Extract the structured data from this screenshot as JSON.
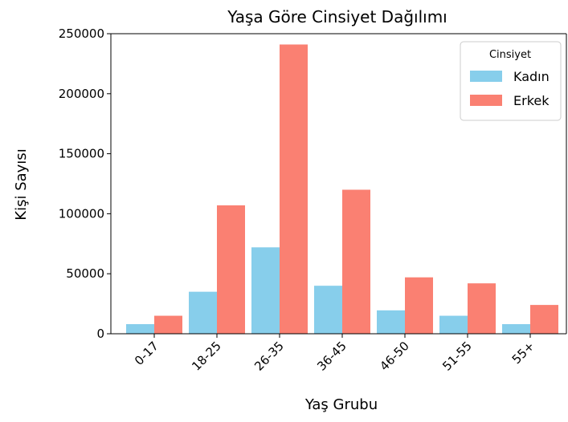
{
  "chart_data": {
    "type": "bar",
    "title": "Yaşa Göre Cinsiyet Dağılımı",
    "x_label": "Yaş Grubu",
    "y_label": "Kişi Sayısı",
    "categories": [
      "0-17",
      "18-25",
      "26-35",
      "36-45",
      "46-50",
      "51-55",
      "55+"
    ],
    "series": [
      {
        "name": "Kadın",
        "color": "#87ceeb",
        "values": [
          8000,
          35000,
          72000,
          40000,
          19500,
          15000,
          8000
        ]
      },
      {
        "name": "Erkek",
        "color": "#fa8072",
        "values": [
          15000,
          107000,
          241000,
          120000,
          47000,
          42000,
          24000
        ]
      }
    ],
    "ylim": [
      0,
      250000
    ],
    "yticks": [
      0,
      50000,
      100000,
      150000,
      200000,
      250000
    ],
    "legend": {
      "title": "Cinsiyet",
      "position": "upper right"
    },
    "grid": false
  }
}
